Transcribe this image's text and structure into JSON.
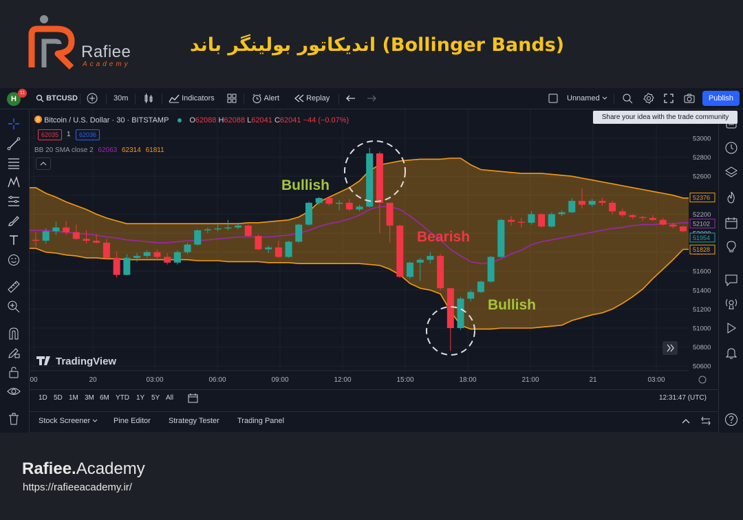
{
  "banner": {
    "logo_name": "Rafiee",
    "logo_sub": "Academy",
    "title": "اندیکاتور بولینگر باند (Bollinger Bands)"
  },
  "topbar": {
    "avatar_letter": "H",
    "notification_count": "11",
    "symbol": "BTCUSD",
    "interval": "30m",
    "indicators_label": "Indicators",
    "alert_label": "Alert",
    "replay_label": "Replay",
    "layout_name": "Unnamed",
    "publish_label": "Publish",
    "tooltip": "Share your idea with the trade community"
  },
  "legend": {
    "symbol_title": "Bitcoin / U.S. Dollar · 30 · BITSTAMP",
    "ohlc": {
      "o_label": "O",
      "o": "62088",
      "h_label": "H",
      "h": "62088",
      "l_label": "L",
      "l": "62041",
      "c_label": "C",
      "c": "62041",
      "change": "−44 (−0.07%)"
    },
    "bid": "62035",
    "qty": "1",
    "ask": "62036",
    "indicator_name": "BB 20 SMA close 2",
    "bb_basis": "62063",
    "bb_upper": "62314",
    "bb_lower": "61811"
  },
  "annotations": {
    "bullish_top": "Bullish",
    "bearish": "Bearish",
    "bullish_bottom": "Bullish"
  },
  "watermark": "TradingView",
  "colors": {
    "up": "#26a69a",
    "down": "#f23645",
    "band": "#f39c12",
    "basis": "#9c27b0",
    "label_bull": "#a5c63b",
    "label_bear": "#f23645",
    "title": "#f7c21b",
    "brand_orange": "#f15a24"
  },
  "chart_data": {
    "type": "candlestick",
    "price_axis": [
      53000,
      52800,
      52600,
      52400,
      52200,
      52000,
      51800,
      51600,
      51400,
      51200,
      51000,
      50800,
      50600
    ],
    "time_axis": [
      "00",
      "20",
      "03:00",
      "06:00",
      "09:00",
      "12:00",
      "15:00",
      "18:00",
      "21:00",
      "21",
      "03:00"
    ],
    "price_labels": [
      {
        "value": "52376",
        "role": "upper"
      },
      {
        "value": "52102",
        "role": "basis"
      },
      {
        "value": "51954",
        "role": "last"
      },
      {
        "value": "51828",
        "role": "lower"
      }
    ],
    "candles": [
      {
        "o": 51930,
        "h": 52010,
        "l": 51860,
        "c": 51920
      },
      {
        "o": 51920,
        "h": 52050,
        "l": 51890,
        "c": 52020
      },
      {
        "o": 52020,
        "h": 52120,
        "l": 51980,
        "c": 52060
      },
      {
        "o": 52060,
        "h": 52130,
        "l": 51980,
        "c": 52010
      },
      {
        "o": 52010,
        "h": 52090,
        "l": 51930,
        "c": 51940
      },
      {
        "o": 51940,
        "h": 52030,
        "l": 51890,
        "c": 51920
      },
      {
        "o": 51920,
        "h": 51990,
        "l": 51890,
        "c": 51900
      },
      {
        "o": 51900,
        "h": 51940,
        "l": 51720,
        "c": 51740
      },
      {
        "o": 51740,
        "h": 51810,
        "l": 51530,
        "c": 51560
      },
      {
        "o": 51560,
        "h": 51780,
        "l": 51560,
        "c": 51740
      },
      {
        "o": 51740,
        "h": 51790,
        "l": 51700,
        "c": 51760
      },
      {
        "o": 51760,
        "h": 51820,
        "l": 51740,
        "c": 51800
      },
      {
        "o": 51800,
        "h": 51830,
        "l": 51710,
        "c": 51750
      },
      {
        "o": 51750,
        "h": 51790,
        "l": 51670,
        "c": 51690
      },
      {
        "o": 51690,
        "h": 51820,
        "l": 51670,
        "c": 51800
      },
      {
        "o": 51800,
        "h": 51900,
        "l": 51780,
        "c": 51880
      },
      {
        "o": 51880,
        "h": 52040,
        "l": 51870,
        "c": 52030
      },
      {
        "o": 52030,
        "h": 52060,
        "l": 52000,
        "c": 52040
      },
      {
        "o": 52040,
        "h": 52090,
        "l": 52020,
        "c": 52050
      },
      {
        "o": 52050,
        "h": 52140,
        "l": 52030,
        "c": 52060
      },
      {
        "o": 52060,
        "h": 52110,
        "l": 52040,
        "c": 52080
      },
      {
        "o": 52080,
        "h": 52090,
        "l": 51960,
        "c": 51970
      },
      {
        "o": 51970,
        "h": 51990,
        "l": 51820,
        "c": 51830
      },
      {
        "o": 51830,
        "h": 51870,
        "l": 51790,
        "c": 51850
      },
      {
        "o": 51850,
        "h": 51920,
        "l": 51740,
        "c": 51750
      },
      {
        "o": 51750,
        "h": 51920,
        "l": 51740,
        "c": 51910
      },
      {
        "o": 51910,
        "h": 52100,
        "l": 51900,
        "c": 52090
      },
      {
        "o": 52090,
        "h": 52330,
        "l": 52080,
        "c": 52320
      },
      {
        "o": 52320,
        "h": 52380,
        "l": 52300,
        "c": 52370
      },
      {
        "o": 52370,
        "h": 52380,
        "l": 52290,
        "c": 52310
      },
      {
        "o": 52310,
        "h": 52350,
        "l": 52240,
        "c": 52320
      },
      {
        "o": 52320,
        "h": 52360,
        "l": 52230,
        "c": 52250
      },
      {
        "o": 52250,
        "h": 52300,
        "l": 52230,
        "c": 52280
      },
      {
        "o": 52280,
        "h": 52900,
        "l": 52270,
        "c": 52840
      },
      {
        "o": 52840,
        "h": 52860,
        "l": 52000,
        "c": 52320
      },
      {
        "o": 52320,
        "h": 52320,
        "l": 51900,
        "c": 52080
      },
      {
        "o": 52080,
        "h": 52090,
        "l": 51530,
        "c": 51540
      },
      {
        "o": 51540,
        "h": 51700,
        "l": 51520,
        "c": 51690
      },
      {
        "o": 51690,
        "h": 51740,
        "l": 51500,
        "c": 51720
      },
      {
        "o": 51720,
        "h": 51800,
        "l": 51680,
        "c": 51760
      },
      {
        "o": 51760,
        "h": 51780,
        "l": 51400,
        "c": 51420
      },
      {
        "o": 51420,
        "h": 51420,
        "l": 50760,
        "c": 51000
      },
      {
        "o": 51000,
        "h": 51330,
        "l": 50980,
        "c": 51310
      },
      {
        "o": 51310,
        "h": 51400,
        "l": 51280,
        "c": 51380
      },
      {
        "o": 51380,
        "h": 51500,
        "l": 51370,
        "c": 51490
      },
      {
        "o": 51490,
        "h": 51760,
        "l": 51480,
        "c": 51750
      },
      {
        "o": 51750,
        "h": 52150,
        "l": 51740,
        "c": 52140
      },
      {
        "o": 52140,
        "h": 52180,
        "l": 52080,
        "c": 52120
      },
      {
        "o": 52120,
        "h": 52160,
        "l": 52060,
        "c": 52110
      },
      {
        "o": 52110,
        "h": 52230,
        "l": 52090,
        "c": 52200
      },
      {
        "o": 52200,
        "h": 52210,
        "l": 52060,
        "c": 52070
      },
      {
        "o": 52070,
        "h": 52220,
        "l": 52060,
        "c": 52200
      },
      {
        "o": 52200,
        "h": 52240,
        "l": 52180,
        "c": 52220
      },
      {
        "o": 52220,
        "h": 52370,
        "l": 52210,
        "c": 52340
      },
      {
        "o": 52340,
        "h": 52470,
        "l": 52260,
        "c": 52300
      },
      {
        "o": 52300,
        "h": 52360,
        "l": 52280,
        "c": 52340
      },
      {
        "o": 52340,
        "h": 52370,
        "l": 52290,
        "c": 52320
      },
      {
        "o": 52320,
        "h": 52340,
        "l": 52200,
        "c": 52230
      },
      {
        "o": 52230,
        "h": 52260,
        "l": 52170,
        "c": 52190
      },
      {
        "o": 52190,
        "h": 52200,
        "l": 52150,
        "c": 52170
      },
      {
        "o": 52170,
        "h": 52180,
        "l": 52130,
        "c": 52160
      },
      {
        "o": 52160,
        "h": 52190,
        "l": 52130,
        "c": 52140
      },
      {
        "o": 52140,
        "h": 52160,
        "l": 52080,
        "c": 52090
      },
      {
        "o": 52090,
        "h": 52110,
        "l": 52050,
        "c": 52070
      },
      {
        "o": 52070,
        "h": 52080,
        "l": 52010,
        "c": 52020
      }
    ],
    "bb_upper": [
      52480,
      52420,
      52380,
      52330,
      52290,
      52250,
      52200,
      52160,
      52130,
      52100,
      52100,
      52100,
      52100,
      52100,
      52100,
      52100,
      52100,
      52100,
      52100,
      52100,
      52100,
      52110,
      52110,
      52120,
      52130,
      52140,
      52170,
      52230,
      52330,
      52380,
      52430,
      52480,
      52550,
      52660,
      52720,
      52740,
      52760,
      52770,
      52780,
      52780,
      52780,
      52790,
      52790,
      52720,
      52670,
      52660,
      52650,
      52640,
      52630,
      52630,
      52630,
      52620,
      52610,
      52600,
      52580,
      52560,
      52540,
      52520,
      52500,
      52480,
      52460,
      52440,
      52420,
      52400,
      52370
    ],
    "bb_basis": [
      52030,
      52030,
      52020,
      52010,
      52000,
      51990,
      51980,
      51960,
      51950,
      51930,
      51920,
      51910,
      51900,
      51900,
      51910,
      51920,
      51920,
      51930,
      51940,
      51950,
      51960,
      51960,
      51960,
      51960,
      51970,
      51980,
      52000,
      52030,
      52070,
      52100,
      52120,
      52150,
      52190,
      52250,
      52280,
      52280,
      52250,
      52180,
      52100,
      52010,
      51930,
      51830,
      51760,
      51700,
      51680,
      51690,
      51730,
      51780,
      51820,
      51880,
      51910,
      51930,
      51950,
      51970,
      51990,
      52010,
      52030,
      52050,
      52060,
      52080,
      52090,
      52090,
      52100,
      52100,
      52110
    ],
    "bb_lower": [
      51840,
      51800,
      51790,
      51770,
      51760,
      51740,
      51740,
      51730,
      51730,
      51720,
      51720,
      51720,
      51720,
      51720,
      51720,
      51720,
      51710,
      51710,
      51710,
      51700,
      51700,
      51700,
      51700,
      51690,
      51690,
      51690,
      51680,
      51680,
      51680,
      51680,
      51680,
      51680,
      51680,
      51670,
      51660,
      51620,
      51560,
      51470,
      51420,
      51400,
      51360,
      51180,
      51030,
      50990,
      50990,
      50990,
      51000,
      51000,
      51000,
      51000,
      51010,
      51020,
      51030,
      51080,
      51110,
      51140,
      51160,
      51200,
      51260,
      51330,
      51410,
      51520,
      51620,
      51720,
      51830
    ]
  },
  "rangebar": {
    "ranges": [
      "1D",
      "5D",
      "1M",
      "3M",
      "6M",
      "YTD",
      "1Y",
      "5Y",
      "All"
    ],
    "clock": "12:31:47 (UTC)"
  },
  "bottom_tabs": {
    "screener": "Stock Screener",
    "pine": "Pine Editor",
    "tester": "Strategy Tester",
    "panel": "Trading Panel"
  },
  "footer": {
    "brand_bold": "Rafiee.",
    "brand_rest": "Academy",
    "url": "https://rafieeacademy.ir/"
  }
}
